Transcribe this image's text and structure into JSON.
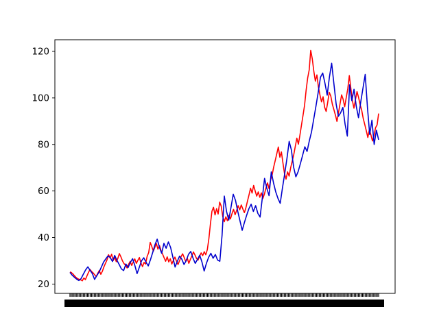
{
  "chart_data": {
    "type": "line",
    "title": "",
    "xlabel": "",
    "ylabel": "",
    "ylim": [
      16,
      125
    ],
    "y_ticks": [
      20,
      40,
      60,
      80,
      100,
      120
    ],
    "grid": false,
    "legend": "none",
    "x_tick_labels_note_text": "",
    "colors": {
      "series_1": "#ff0000",
      "series_2": "#0000cd"
    },
    "series": [
      {
        "color": "#ff0000",
        "values": [
          25.2,
          24.9,
          24.3,
          23.5,
          22.8,
          22.3,
          22.0,
          21.8,
          21.4,
          22.6,
          21.9,
          23.5,
          25.0,
          26.3,
          25.4,
          24.8,
          24.0,
          23.2,
          24.6,
          25.8,
          24.2,
          25.5,
          27.4,
          28.9,
          30.4,
          32.6,
          31.2,
          32.8,
          30.1,
          31.5,
          29.6,
          31.0,
          33.1,
          31.7,
          30.0,
          28.8,
          28.1,
          26.9,
          28.5,
          29.7,
          28.0,
          29.5,
          30.8,
          28.9,
          30.2,
          31.4,
          29.0,
          27.5,
          29.3,
          28.6,
          31.9,
          33.5,
          37.9,
          36.2,
          34.1,
          35.8,
          37.4,
          35.0,
          36.6,
          34.4,
          32.9,
          31.3,
          29.8,
          31.7,
          29.5,
          30.9,
          28.6,
          30.2,
          31.6,
          29.9,
          28.4,
          30.0,
          31.8,
          33.0,
          31.4,
          29.7,
          31.2,
          28.9,
          30.6,
          32.1,
          33.8,
          32.5,
          31.0,
          30.3,
          32.0,
          33.4,
          32.2,
          33.9,
          32.6,
          34.8,
          39.5,
          45.8,
          51.3,
          53.0,
          49.7,
          52.4,
          50.1,
          55.2,
          53.5,
          49.0,
          46.8,
          48.9,
          47.2,
          49.5,
          48.0,
          50.3,
          52.1,
          49.8,
          51.6,
          53.7,
          51.9,
          54.0,
          52.3,
          50.7,
          52.8,
          55.6,
          58.3,
          61.2,
          59.1,
          62.4,
          60.0,
          57.8,
          59.6,
          57.3,
          59.2,
          56.8,
          58.7,
          61.3,
          63.5,
          61.0,
          64.7,
          66.9,
          70.3,
          73.1,
          76.0,
          78.9,
          74.5,
          76.8,
          72.0,
          67.5,
          65.1,
          68.2,
          66.4,
          70.0,
          72.8,
          75.6,
          79.2,
          82.7,
          80.1,
          84.0,
          88.3,
          92.5,
          96.8,
          103.2,
          108.5,
          112.0,
          120.4,
          116.8,
          111.5,
          107.2,
          109.9,
          104.6,
          101.2,
          98.3,
          100.5,
          96.0,
          94.2,
          98.1,
          102.4,
          100.8,
          97.3,
          95.0,
          92.6,
          89.9,
          93.7,
          97.5,
          101.3,
          99.4,
          96.2,
          100.1,
          103.9,
          109.6,
          104.1,
          98.8,
          95.6,
          99.3,
          102.7,
          100.2,
          97.1,
          94.8,
          91.2,
          88.6,
          85.9,
          83.0,
          86.4,
          84.1,
          81.5,
          83.8,
          87.2,
          88.4,
          93.3
        ]
      },
      {
        "color": "#0000cd",
        "values": [
          25.0,
          23.8,
          22.9,
          22.1,
          21.5,
          22.4,
          24.3,
          26.1,
          27.4,
          25.9,
          24.5,
          22.0,
          23.6,
          25.1,
          27.2,
          29.4,
          30.8,
          32.1,
          31.4,
          29.7,
          32.3,
          30.2,
          28.4,
          26.5,
          25.8,
          28.6,
          27.1,
          29.3,
          30.9,
          28.0,
          24.5,
          27.2,
          30.0,
          31.3,
          29.4,
          27.8,
          30.5,
          33.6,
          36.9,
          39.3,
          35.8,
          33.2,
          37.5,
          35.4,
          38.1,
          35.7,
          31.6,
          27.3,
          29.8,
          32.0,
          30.7,
          28.4,
          30.1,
          32.8,
          34.0,
          31.2,
          28.9,
          30.6,
          32.4,
          29.5,
          25.6,
          28.9,
          31.5,
          33.2,
          31.1,
          32.7,
          30.3,
          29.8,
          41.0,
          57.8,
          51.2,
          47.5,
          53.0,
          58.6,
          56.0,
          51.3,
          47.2,
          43.1,
          46.5,
          49.6,
          52.4,
          54.3,
          51.2,
          53.7,
          50.4,
          48.8,
          57.0,
          65.4,
          61.2,
          58.0,
          68.2,
          63.5,
          59.6,
          56.8,
          54.7,
          61.3,
          67.4,
          73.9,
          81.3,
          77.6,
          70.2,
          66.1,
          68.3,
          71.7,
          75.3,
          79.0,
          77.0,
          81.5,
          85.4,
          91.0,
          96.6,
          102.5,
          108.9,
          110.7,
          106.3,
          101.2,
          109.0,
          114.9,
          106.1,
          97.4,
          92.1,
          93.6,
          95.9,
          88.7,
          83.6,
          105.6,
          98.8,
          103.7,
          96.4,
          91.5,
          98.3,
          104.2,
          110.1,
          95.9,
          84.3,
          90.4,
          80.0,
          86.1,
          82.0
        ]
      }
    ]
  }
}
